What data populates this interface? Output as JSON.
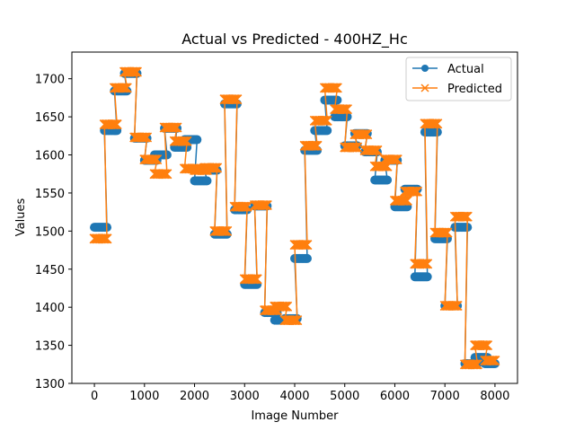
{
  "chart_data": {
    "type": "line",
    "title": "Actual vs Predicted - 400HZ_Hc",
    "xlabel": "Image Number",
    "ylabel": "Values",
    "xlim": [
      -450,
      8450
    ],
    "ylim": [
      1300,
      1735
    ],
    "xticks": [
      0,
      1000,
      2000,
      3000,
      4000,
      5000,
      6000,
      7000,
      8000
    ],
    "yticks": [
      1300,
      1350,
      1400,
      1450,
      1500,
      1550,
      1600,
      1650,
      1700
    ],
    "legend_position": "top-right",
    "colors": {
      "actual": "#1f77b4",
      "predicted": "#ff7f0e"
    },
    "series": [
      {
        "name": "Actual",
        "marker": "circle",
        "segments": [
          {
            "x": [
              0,
              250
            ],
            "y": 1505
          },
          {
            "x": [
              200,
              450
            ],
            "y": 1632
          },
          {
            "x": [
              400,
              650
            ],
            "y": 1684
          },
          {
            "x": [
              600,
              850
            ],
            "y": 1707
          },
          {
            "x": [
              800,
              1050
            ],
            "y": 1622
          },
          {
            "x": [
              1000,
              1250
            ],
            "y": 1593
          },
          {
            "x": [
              1200,
              1450
            ],
            "y": 1600
          },
          {
            "x": [
              1400,
              1650
            ],
            "y": 1635
          },
          {
            "x": [
              1600,
              1850
            ],
            "y": 1610
          },
          {
            "x": [
              1800,
              2050
            ],
            "y": 1620
          },
          {
            "x": [
              2000,
              2250
            ],
            "y": 1566
          },
          {
            "x": [
              2200,
              2450
            ],
            "y": 1580
          },
          {
            "x": [
              2400,
              2650
            ],
            "y": 1496
          },
          {
            "x": [
              2600,
              2850
            ],
            "y": 1667
          },
          {
            "x": [
              2800,
              3050
            ],
            "y": 1528
          },
          {
            "x": [
              3000,
              3250
            ],
            "y": 1430
          },
          {
            "x": [
              3200,
              3450
            ],
            "y": 1533
          },
          {
            "x": [
              3400,
              3650
            ],
            "y": 1393
          },
          {
            "x": [
              3600,
              3850
            ],
            "y": 1383
          },
          {
            "x": [
              3800,
              4050
            ],
            "y": 1385
          },
          {
            "x": [
              4000,
              4250
            ],
            "y": 1464
          },
          {
            "x": [
              4200,
              4450
            ],
            "y": 1606
          },
          {
            "x": [
              4400,
              4650
            ],
            "y": 1632
          },
          {
            "x": [
              4600,
              4850
            ],
            "y": 1672
          },
          {
            "x": [
              4800,
              5050
            ],
            "y": 1650
          },
          {
            "x": [
              5000,
              5250
            ],
            "y": 1612
          },
          {
            "x": [
              5200,
              5450
            ],
            "y": 1628
          },
          {
            "x": [
              5400,
              5650
            ],
            "y": 1604
          },
          {
            "x": [
              5600,
              5850
            ],
            "y": 1567
          },
          {
            "x": [
              5800,
              6050
            ],
            "y": 1593
          },
          {
            "x": [
              6000,
              6250
            ],
            "y": 1532
          },
          {
            "x": [
              6200,
              6450
            ],
            "y": 1555
          },
          {
            "x": [
              6400,
              6650
            ],
            "y": 1440
          },
          {
            "x": [
              6600,
              6850
            ],
            "y": 1630
          },
          {
            "x": [
              6800,
              7050
            ],
            "y": 1490
          },
          {
            "x": [
              7000,
              7250
            ],
            "y": 1402
          },
          {
            "x": [
              7200,
              7450
            ],
            "y": 1505
          },
          {
            "x": [
              7400,
              7650
            ],
            "y": 1326
          },
          {
            "x": [
              7600,
              7850
            ],
            "y": 1334
          },
          {
            "x": [
              7800,
              8000
            ],
            "y": 1326
          }
        ]
      },
      {
        "name": "Predicted",
        "marker": "x",
        "segments": [
          {
            "x": [
              0,
              250
            ],
            "y": 1490
          },
          {
            "x": [
              200,
              450
            ],
            "y": 1640
          },
          {
            "x": [
              400,
              650
            ],
            "y": 1688
          },
          {
            "x": [
              600,
              850
            ],
            "y": 1709
          },
          {
            "x": [
              800,
              1050
            ],
            "y": 1623
          },
          {
            "x": [
              1000,
              1250
            ],
            "y": 1594
          },
          {
            "x": [
              1200,
              1450
            ],
            "y": 1575
          },
          {
            "x": [
              1400,
              1650
            ],
            "y": 1636
          },
          {
            "x": [
              1600,
              1850
            ],
            "y": 1618
          },
          {
            "x": [
              1800,
              2050
            ],
            "y": 1582
          },
          {
            "x": [
              2000,
              2250
            ],
            "y": 1580
          },
          {
            "x": [
              2200,
              2450
            ],
            "y": 1583
          },
          {
            "x": [
              2400,
              2650
            ],
            "y": 1500
          },
          {
            "x": [
              2600,
              2850
            ],
            "y": 1673
          },
          {
            "x": [
              2800,
              3050
            ],
            "y": 1532
          },
          {
            "x": [
              3000,
              3250
            ],
            "y": 1437
          },
          {
            "x": [
              3200,
              3450
            ],
            "y": 1534
          },
          {
            "x": [
              3400,
              3650
            ],
            "y": 1396
          },
          {
            "x": [
              3600,
              3850
            ],
            "y": 1401
          },
          {
            "x": [
              3800,
              4050
            ],
            "y": 1383
          },
          {
            "x": [
              4000,
              4250
            ],
            "y": 1482
          },
          {
            "x": [
              4200,
              4450
            ],
            "y": 1612
          },
          {
            "x": [
              4400,
              4650
            ],
            "y": 1645
          },
          {
            "x": [
              4600,
              4850
            ],
            "y": 1688
          },
          {
            "x": [
              4800,
              5050
            ],
            "y": 1660
          },
          {
            "x": [
              5000,
              5250
            ],
            "y": 1610
          },
          {
            "x": [
              5200,
              5450
            ],
            "y": 1627
          },
          {
            "x": [
              5400,
              5650
            ],
            "y": 1606
          },
          {
            "x": [
              5600,
              5850
            ],
            "y": 1585
          },
          {
            "x": [
              5800,
              6050
            ],
            "y": 1594
          },
          {
            "x": [
              6000,
              6250
            ],
            "y": 1540
          },
          {
            "x": [
              6200,
              6450
            ],
            "y": 1552
          },
          {
            "x": [
              6400,
              6650
            ],
            "y": 1457
          },
          {
            "x": [
              6600,
              6850
            ],
            "y": 1641
          },
          {
            "x": [
              6800,
              7050
            ],
            "y": 1498
          },
          {
            "x": [
              7000,
              7250
            ],
            "y": 1402
          },
          {
            "x": [
              7200,
              7450
            ],
            "y": 1519
          },
          {
            "x": [
              7400,
              7650
            ],
            "y": 1325
          },
          {
            "x": [
              7600,
              7850
            ],
            "y": 1350
          },
          {
            "x": [
              7800,
              8000
            ],
            "y": 1330
          }
        ]
      }
    ]
  }
}
